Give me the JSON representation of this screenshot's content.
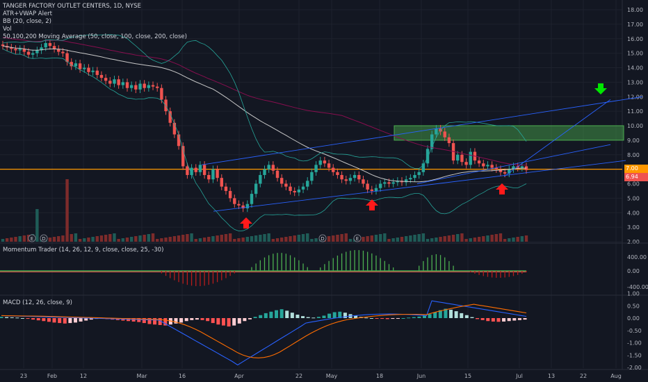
{
  "header": {
    "title": "TANGER FACTORY OUTLET CENTERS, 1D, NYSE",
    "indicators": [
      "ATR+VWAP Alert",
      "BB (20, close, 2)",
      "Vol",
      "50,100,200 Moving Average (50, close, 100, close, 200, close)"
    ]
  },
  "panes": {
    "momentum_label": "Momentum Trader (14, 26, 12, 9, close, close, 25, -30)",
    "macd_label": "MACD (12, 26, close, 9)"
  },
  "price_tags": {
    "last": "7.00",
    "current": "6.94"
  },
  "colors": {
    "background": "#131722",
    "up": "#26a69a",
    "down": "#ef5350",
    "trendline": "#2962ff",
    "hline": "#ff9800",
    "zone": "#4caf50"
  },
  "chart_data": [
    {
      "type": "candlestick",
      "title": "TANGER FACTORY OUTLET CENTERS, 1D, NYSE",
      "y_ticks": [
        "18.00",
        "17.00",
        "16.00",
        "15.00",
        "14.00",
        "13.00",
        "12.00",
        "11.00",
        "10.00",
        "9.00",
        "8.00",
        "7.00",
        "6.00",
        "5.00",
        "4.00",
        "3.00",
        "2.00"
      ],
      "x_ticks": [
        "23",
        "Feb",
        "12",
        "Mar",
        "16",
        "Apr",
        "22",
        "May",
        "18",
        "Jun",
        "15",
        "Jul",
        "13",
        "22",
        "Aug"
      ],
      "closes": [
        15.5,
        15.4,
        15.3,
        15.2,
        15.3,
        15.1,
        14.9,
        15.0,
        15.2,
        15.4,
        15.7,
        15.5,
        15.3,
        15.1,
        15.0,
        14.4,
        14.1,
        14.3,
        13.9,
        14.0,
        13.7,
        13.8,
        13.5,
        13.3,
        13.1,
        12.9,
        13.2,
        12.8,
        13.0,
        12.6,
        12.8,
        12.5,
        12.9,
        12.6,
        12.8,
        12.7,
        12.6,
        11.8,
        11.0,
        10.2,
        9.4,
        8.6,
        7.2,
        6.6,
        7.1,
        6.8,
        7.3,
        6.6,
        6.3,
        7.0,
        6.4,
        5.8,
        5.5,
        5.0,
        4.6,
        4.5,
        4.3,
        4.6,
        5.3,
        6.0,
        6.6,
        7.0,
        7.3,
        6.9,
        6.4,
        6.0,
        5.8,
        5.5,
        5.4,
        5.6,
        5.8,
        6.2,
        6.8,
        7.3,
        7.6,
        7.4,
        7.1,
        6.8,
        6.6,
        6.3,
        6.2,
        6.4,
        6.6,
        6.3,
        6.0,
        5.6,
        5.5,
        5.7,
        6.0,
        6.1,
        6.0,
        6.1,
        6.2,
        6.1,
        6.3,
        6.4,
        6.6,
        6.8,
        7.4,
        8.4,
        9.4,
        9.8,
        9.6,
        9.2,
        8.8,
        7.6,
        8.0,
        7.5,
        7.3,
        8.2,
        7.6,
        7.4,
        7.2,
        7.3,
        7.1,
        7.0,
        6.8,
        6.7,
        7.0,
        7.2,
        7.1,
        7.2,
        6.94
      ],
      "volume_events": [
        "E",
        "D",
        "D",
        "E"
      ],
      "annotations": {
        "zone": [
          9.0,
          10.0
        ],
        "horizontal_line": 7.0,
        "tag_last": "7.00",
        "tag_current": "6.94",
        "arrows_up": 3,
        "arrows_down": 1
      }
    },
    {
      "type": "bar",
      "title": "Momentum Trader (14, 26, 12, 9, close, close, 25, -30)",
      "y_ticks": [
        "400.00",
        "0.00",
        "-400.00"
      ],
      "values_pattern": "positive bursts in Apr-May and Jun, negative in Mar and late Jun"
    },
    {
      "type": "bar",
      "title": "MACD (12, 26, close, 9)",
      "y_ticks": [
        "1.00",
        "0.50",
        "0.00",
        "-0.50",
        "-1.00",
        "-1.50",
        "-2.00"
      ],
      "histogram": [
        0.05,
        0.04,
        0.03,
        0.02,
        0.0,
        -0.03,
        -0.06,
        -0.09,
        -0.12,
        -0.15,
        -0.18,
        -0.2,
        -0.22,
        -0.2,
        -0.18,
        -0.14,
        -0.1,
        -0.06,
        -0.03,
        -0.02,
        -0.04,
        -0.06,
        -0.08,
        -0.1,
        -0.12,
        -0.14,
        -0.16,
        -0.2,
        -0.24,
        -0.26,
        -0.28,
        -0.3,
        -0.26,
        -0.22,
        -0.18,
        -0.12,
        -0.08,
        -0.06,
        -0.08,
        -0.12,
        -0.2,
        -0.26,
        -0.3,
        -0.34,
        -0.3,
        -0.22,
        -0.12,
        -0.05,
        0.05,
        0.12,
        0.2,
        0.26,
        0.32,
        0.36,
        0.3,
        0.22,
        0.14,
        0.08,
        0.04,
        0.02,
        0.05,
        0.1,
        0.18,
        0.24,
        0.26,
        0.22,
        0.16,
        0.1,
        0.05,
        0.02,
        0.0,
        -0.02,
        -0.03,
        -0.04,
        -0.03,
        -0.02,
        0.0,
        0.02,
        0.04,
        0.06,
        0.1,
        0.16,
        0.24,
        0.32,
        0.38,
        0.34,
        0.28,
        0.2,
        0.12,
        0.04,
        -0.04,
        -0.08,
        -0.12,
        -0.14,
        -0.15,
        -0.14,
        -0.12,
        -0.1,
        -0.08,
        -0.06
      ]
    }
  ]
}
